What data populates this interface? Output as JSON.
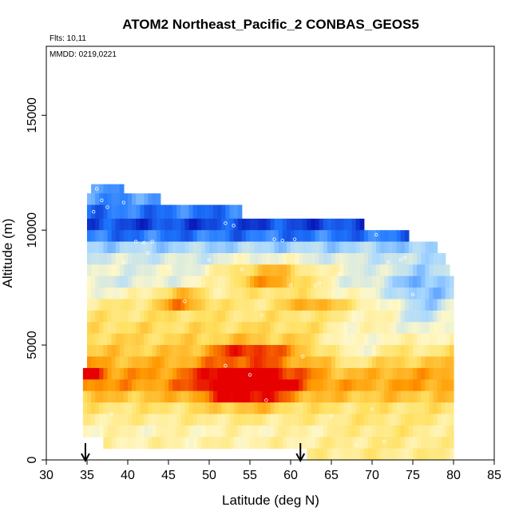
{
  "chart_data": {
    "type": "heatmap",
    "title": "ATOM2 Northeast_Pacific_2 CONBAS_GEOS5",
    "flights_note": "Flts: 10,11",
    "dates_note": "MMDD: 0219,0221",
    "xlabel": "Latitude (deg N)",
    "ylabel": "Altitude (m)",
    "xlim": [
      30,
      85
    ],
    "ylim": [
      0,
      18000
    ],
    "xticks": [
      "30",
      "35",
      "40",
      "45",
      "50",
      "55",
      "60",
      "65",
      "70",
      "75",
      "80",
      "85"
    ],
    "yticks": [
      "0",
      "5000",
      "10000",
      "15000"
    ],
    "arrow_markers_lat": [
      34.8,
      61.2
    ],
    "colors": {
      "deep_blue": "#0000a8",
      "mid_blue": "#1f78ff",
      "light_blue": "#a8d8ff",
      "pale": "#fff8c8",
      "yellow": "#ffe060",
      "orange": "#ff9900",
      "red": "#e60000"
    },
    "bands": [
      {
        "lat_start": 35.5,
        "lat_end": 39.5,
        "alt_bottom": 11600,
        "alt_top": 12000,
        "tone": 1.2
      },
      {
        "lat_start": 35.0,
        "lat_end": 44.0,
        "alt_bottom": 11100,
        "alt_top": 11600,
        "tone": 1.3
      },
      {
        "lat_start": 35.0,
        "lat_end": 54.0,
        "alt_bottom": 10500,
        "alt_top": 11100,
        "tone": 1.0
      },
      {
        "lat_start": 35.0,
        "lat_end": 69.0,
        "alt_bottom": 10000,
        "alt_top": 10500,
        "tone": 0.6
      },
      {
        "lat_start": 35.0,
        "lat_end": 74.5,
        "alt_bottom": 9500,
        "alt_top": 10000,
        "tone": 1.0
      },
      {
        "lat_start": 35.0,
        "lat_end": 78.0,
        "alt_bottom": 9000,
        "alt_top": 9500,
        "tone": 2.0
      },
      {
        "lat_start": 35.0,
        "lat_end": 79.0,
        "alt_bottom": 8500,
        "alt_top": 9000,
        "tone": 2.5
      },
      {
        "lat_start": 35.0,
        "lat_end": 79.5,
        "alt_bottom": 8000,
        "alt_top": 8500,
        "tone": 2.7
      },
      {
        "lat_start": 35.0,
        "lat_end": 80.0,
        "alt_bottom": 7500,
        "alt_top": 8000,
        "tone": 2.6
      },
      {
        "lat_start": 35.0,
        "lat_end": 80.0,
        "alt_bottom": 7000,
        "alt_top": 7500,
        "tone": 3.0
      },
      {
        "lat_start": 35.0,
        "lat_end": 80.0,
        "alt_bottom": 6500,
        "alt_top": 7000,
        "tone": 3.6
      },
      {
        "lat_start": 35.0,
        "lat_end": 80.0,
        "alt_bottom": 6000,
        "alt_top": 6500,
        "tone": 3.8
      },
      {
        "lat_start": 35.0,
        "lat_end": 80.0,
        "alt_bottom": 5500,
        "alt_top": 6000,
        "tone": 4.0
      },
      {
        "lat_start": 35.0,
        "lat_end": 80.0,
        "alt_bottom": 5000,
        "alt_top": 5500,
        "tone": 4.1
      },
      {
        "lat_start": 35.0,
        "lat_end": 80.0,
        "alt_bottom": 4500,
        "alt_top": 5000,
        "tone": 4.3
      },
      {
        "lat_start": 35.0,
        "lat_end": 80.0,
        "alt_bottom": 4000,
        "alt_top": 4500,
        "tone": 4.6
      },
      {
        "lat_start": 34.5,
        "lat_end": 80.0,
        "alt_bottom": 3500,
        "alt_top": 4000,
        "tone": 4.9
      },
      {
        "lat_start": 34.5,
        "lat_end": 80.0,
        "alt_bottom": 3000,
        "alt_top": 3500,
        "tone": 4.9
      },
      {
        "lat_start": 34.5,
        "lat_end": 80.0,
        "alt_bottom": 2500,
        "alt_top": 3000,
        "tone": 4.4
      },
      {
        "lat_start": 34.5,
        "lat_end": 80.0,
        "alt_bottom": 2000,
        "alt_top": 2500,
        "tone": 3.8
      },
      {
        "lat_start": 34.5,
        "lat_end": 80.0,
        "alt_bottom": 1500,
        "alt_top": 2000,
        "tone": 3.5
      },
      {
        "lat_start": 34.5,
        "lat_end": 80.0,
        "alt_bottom": 1000,
        "alt_top": 1500,
        "tone": 3.2
      },
      {
        "lat_start": 37.0,
        "lat_end": 80.0,
        "alt_bottom": 500,
        "alt_top": 1000,
        "tone": 3.3
      },
      {
        "lat_start": 62.0,
        "lat_end": 80.0,
        "alt_bottom": 0,
        "alt_top": 500,
        "tone": 3.5
      }
    ],
    "hotspots": [
      {
        "lat": 54.5,
        "alt": 3300,
        "lat_radius": 5.5,
        "alt_radius": 900,
        "boost": 2.6
      },
      {
        "lat": 57.5,
        "alt": 7900,
        "lat_radius": 6.0,
        "alt_radius": 650,
        "boost": 2.4
      },
      {
        "lat": 46.5,
        "alt": 7000,
        "lat_radius": 3.5,
        "alt_radius": 500,
        "boost": 1.8
      },
      {
        "lat": 55.0,
        "alt": 4800,
        "lat_radius": 5.0,
        "alt_radius": 350,
        "boost": 1.4
      },
      {
        "lat": 35.5,
        "alt": 3700,
        "lat_radius": 1.5,
        "alt_radius": 400,
        "boost": 1.6
      },
      {
        "lat": 63.0,
        "alt": 6800,
        "lat_radius": 3.5,
        "alt_radius": 350,
        "boost": 1.3
      },
      {
        "lat": 68.0,
        "alt": 5000,
        "lat_radius": 4.0,
        "alt_radius": 1200,
        "boost": -1.3
      },
      {
        "lat": 76.5,
        "alt": 6500,
        "lat_radius": 4.5,
        "alt_radius": 1800,
        "boost": -1.6
      },
      {
        "lat": 72.0,
        "alt": 1200,
        "lat_radius": 8.0,
        "alt_radius": 700,
        "boost": 0.5
      }
    ],
    "flight_points": [
      [
        36.2,
        11800
      ],
      [
        36.8,
        11300
      ],
      [
        35.8,
        10800
      ],
      [
        37.5,
        11000
      ],
      [
        39.5,
        11200
      ],
      [
        41.0,
        9500
      ],
      [
        42.0,
        9450
      ],
      [
        43.0,
        9500
      ],
      [
        39.5,
        8600
      ],
      [
        52.0,
        10300
      ],
      [
        53.0,
        10200
      ],
      [
        58.0,
        9600
      ],
      [
        59.0,
        9550
      ],
      [
        60.5,
        9600
      ],
      [
        66.5,
        10700
      ],
      [
        68.0,
        10650
      ],
      [
        70.5,
        9800
      ],
      [
        73.0,
        10100
      ],
      [
        75.5,
        9600
      ],
      [
        77.0,
        9650
      ],
      [
        78.5,
        9600
      ],
      [
        73.5,
        8700
      ],
      [
        72.0,
        8600
      ],
      [
        74.0,
        8800
      ],
      [
        45.0,
        8400
      ],
      [
        60.0,
        7600
      ],
      [
        63.0,
        7600
      ],
      [
        75.0,
        7200
      ],
      [
        55.0,
        3700
      ],
      [
        57.0,
        2600
      ],
      [
        38.0,
        2000
      ],
      [
        65.0,
        1900
      ],
      [
        70.0,
        2200
      ],
      [
        71.5,
        800
      ],
      [
        68.0,
        650
      ],
      [
        42.5,
        9000
      ],
      [
        50.0,
        8700
      ],
      [
        54.0,
        8300
      ],
      [
        66.0,
        8100
      ],
      [
        63.5,
        7700
      ],
      [
        47.0,
        6900
      ],
      [
        56.5,
        6300
      ],
      [
        61.5,
        4500
      ],
      [
        52.0,
        4100
      ]
    ]
  }
}
